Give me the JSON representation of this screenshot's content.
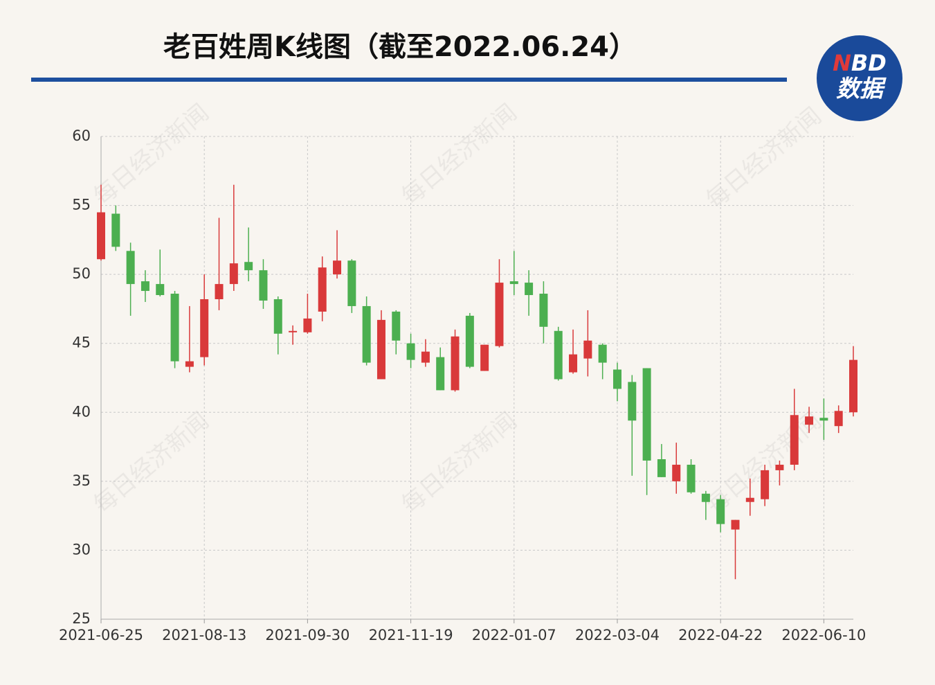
{
  "chart_data": {
    "type": "candlestick",
    "title": "老百姓周K线图（截至2022.06.24）",
    "logo": [
      "N",
      "BD",
      "数据"
    ],
    "watermark": "每日经济新闻",
    "up_color": "#d9393a",
    "down_color": "#4caf50",
    "categories": [
      "2021-06-25",
      null,
      null,
      null,
      null,
      null,
      null,
      "2021-08-13",
      null,
      null,
      null,
      null,
      null,
      null,
      "2021-09-30",
      null,
      null,
      null,
      null,
      null,
      null,
      "2021-11-19",
      null,
      null,
      null,
      null,
      null,
      null,
      "2022-01-07",
      null,
      null,
      null,
      null,
      null,
      null,
      "2022-03-04",
      null,
      null,
      null,
      null,
      null,
      null,
      "2022-04-22",
      null,
      null,
      null,
      null,
      null,
      null,
      "2022-06-10",
      null,
      null
    ],
    "open": [
      51.1,
      54.4,
      51.7,
      49.5,
      49.3,
      48.6,
      43.3,
      44.0,
      48.2,
      49.3,
      50.9,
      50.3,
      48.2,
      45.8,
      45.8,
      47.3,
      50.0,
      51.0,
      47.7,
      42.4,
      47.3,
      45.0,
      43.6,
      44.0,
      41.6,
      47.0,
      43.0,
      44.8,
      49.5,
      49.4,
      48.6,
      45.9,
      42.9,
      43.9,
      44.9,
      43.1,
      42.2,
      43.2,
      36.6,
      35.0,
      36.2,
      34.1,
      33.7,
      31.5,
      33.5,
      33.7,
      35.8,
      36.2,
      39.1,
      39.6,
      39.0,
      40.0
    ],
    "high": [
      56.5,
      55.0,
      52.3,
      50.3,
      51.8,
      48.8,
      47.7,
      50.0,
      54.1,
      56.5,
      53.4,
      51.1,
      48.4,
      46.3,
      48.6,
      51.3,
      53.2,
      51.1,
      48.4,
      47.4,
      47.4,
      45.7,
      45.3,
      44.7,
      46.0,
      47.2,
      44.9,
      51.1,
      51.7,
      50.3,
      49.5,
      46.2,
      46.0,
      47.4,
      45.0,
      43.6,
      42.7,
      43.2,
      37.7,
      37.8,
      36.6,
      34.3,
      34.0,
      32.2,
      35.2,
      36.2,
      36.5,
      41.7,
      40.4,
      41.0,
      40.5,
      44.8
    ],
    "low": [
      51.0,
      51.7,
      47.0,
      48.0,
      48.4,
      43.2,
      42.9,
      43.4,
      47.4,
      48.8,
      49.5,
      47.5,
      44.2,
      44.9,
      45.7,
      46.6,
      49.7,
      47.2,
      43.4,
      42.4,
      44.2,
      43.2,
      43.3,
      41.6,
      41.5,
      43.2,
      43.0,
      44.7,
      48.5,
      47.0,
      45.0,
      42.3,
      42.8,
      42.6,
      42.4,
      40.8,
      35.4,
      34.0,
      35.3,
      34.1,
      34.1,
      32.2,
      31.3,
      27.9,
      32.5,
      33.2,
      34.7,
      35.8,
      38.5,
      38.0,
      38.5,
      39.7
    ],
    "close": [
      54.5,
      52.0,
      49.3,
      48.8,
      48.5,
      43.7,
      43.7,
      48.2,
      49.3,
      50.8,
      50.3,
      48.1,
      45.7,
      45.9,
      46.8,
      50.5,
      51.0,
      47.7,
      43.6,
      46.7,
      45.2,
      43.8,
      44.4,
      41.6,
      45.5,
      43.3,
      44.9,
      49.4,
      49.3,
      48.5,
      46.2,
      42.4,
      44.2,
      45.2,
      43.6,
      41.7,
      39.4,
      36.5,
      35.3,
      36.2,
      34.2,
      33.5,
      31.9,
      32.2,
      33.8,
      35.8,
      36.2,
      39.8,
      39.7,
      39.4,
      40.1,
      43.8
    ],
    "ylim": [
      25,
      60
    ],
    "yticks": [
      25,
      30,
      35,
      40,
      45,
      50,
      55,
      60
    ],
    "grid": true
  }
}
